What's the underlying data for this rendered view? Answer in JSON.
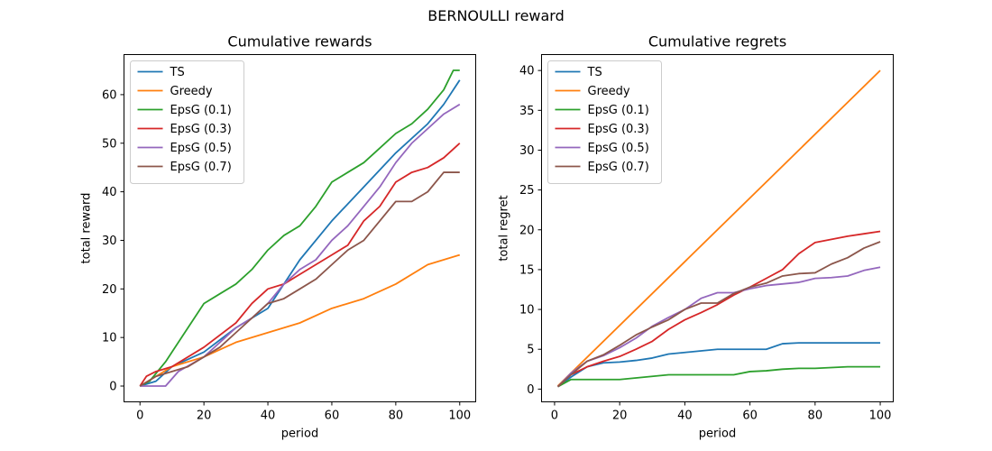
{
  "figure": {
    "suptitle": "BERNOULLI reward"
  },
  "chart_data": [
    {
      "type": "line",
      "title": "Cumulative rewards",
      "xlabel": "period",
      "ylabel": "total reward",
      "xlim": [
        -5,
        105
      ],
      "ylim": [
        -3.25,
        68.25
      ],
      "xticks": [
        0,
        20,
        40,
        60,
        80,
        100
      ],
      "yticks": [
        0,
        10,
        20,
        30,
        40,
        50,
        60
      ],
      "legend": "upper-left",
      "series": [
        {
          "name": "TS",
          "color": "#1f77b4",
          "x": [
            0,
            5,
            10,
            20,
            30,
            40,
            50,
            60,
            70,
            80,
            90,
            95,
            100
          ],
          "y": [
            0,
            1,
            4,
            7,
            12,
            16,
            26,
            34,
            41,
            48,
            54,
            58,
            63
          ]
        },
        {
          "name": "Greedy",
          "color": "#ff7f0e",
          "x": [
            0,
            5,
            10,
            20,
            30,
            40,
            50,
            60,
            70,
            80,
            90,
            100
          ],
          "y": [
            0,
            2,
            4,
            6,
            9,
            11,
            13,
            16,
            18,
            21,
            25,
            27
          ]
        },
        {
          "name": "EpsG (0.1)",
          "color": "#2ca02c",
          "x": [
            0,
            3,
            8,
            15,
            20,
            25,
            30,
            35,
            40,
            45,
            50,
            55,
            60,
            65,
            70,
            75,
            80,
            85,
            90,
            95,
            98,
            100
          ],
          "y": [
            0,
            1,
            5,
            12,
            17,
            19,
            21,
            24,
            28,
            31,
            33,
            37,
            42,
            44,
            46,
            49,
            52,
            54,
            57,
            61,
            65,
            65
          ]
        },
        {
          "name": "EpsG (0.3)",
          "color": "#d62728",
          "x": [
            0,
            2,
            5,
            10,
            20,
            30,
            35,
            40,
            45,
            50,
            55,
            60,
            65,
            70,
            75,
            80,
            85,
            90,
            95,
            100
          ],
          "y": [
            0,
            2,
            3,
            4,
            8,
            13,
            17,
            20,
            21,
            23,
            25,
            27,
            29,
            34,
            37,
            42,
            44,
            45,
            47,
            50
          ]
        },
        {
          "name": "EpsG (0.5)",
          "color": "#9467bd",
          "x": [
            0,
            8,
            12,
            20,
            25,
            30,
            35,
            40,
            45,
            50,
            55,
            60,
            65,
            70,
            75,
            80,
            85,
            90,
            95,
            100
          ],
          "y": [
            0,
            0,
            3,
            6,
            9,
            12,
            14,
            17,
            21,
            24,
            26,
            30,
            33,
            37,
            41,
            46,
            50,
            53,
            56,
            58
          ]
        },
        {
          "name": "EpsG (0.7)",
          "color": "#8c564b",
          "x": [
            0,
            5,
            10,
            15,
            20,
            25,
            30,
            35,
            40,
            45,
            50,
            55,
            60,
            65,
            70,
            75,
            80,
            85,
            90,
            95,
            100
          ],
          "y": [
            0,
            2,
            3,
            4,
            6,
            8,
            11,
            14,
            17,
            18,
            20,
            22,
            25,
            28,
            30,
            34,
            38,
            38,
            40,
            44,
            44
          ]
        }
      ]
    },
    {
      "type": "line",
      "title": "Cumulative regrets",
      "xlabel": "period",
      "ylabel": "total regret",
      "xlim": [
        -4,
        104
      ],
      "ylim": [
        -1.6,
        42.0
      ],
      "xticks": [
        0,
        20,
        40,
        60,
        80,
        100
      ],
      "yticks": [
        0,
        5,
        10,
        15,
        20,
        25,
        30,
        35,
        40
      ],
      "legend": "upper-left",
      "series": [
        {
          "name": "TS",
          "color": "#1f77b4",
          "x": [
            1,
            5,
            10,
            15,
            20,
            25,
            30,
            35,
            40,
            45,
            50,
            55,
            60,
            65,
            70,
            75,
            80,
            85,
            90,
            95,
            100
          ],
          "y": [
            0.3,
            1.5,
            2.8,
            3.3,
            3.4,
            3.6,
            3.9,
            4.4,
            4.6,
            4.8,
            5.0,
            5.0,
            5.0,
            5.0,
            5.7,
            5.8,
            5.8,
            5.8,
            5.8,
            5.8,
            5.8
          ]
        },
        {
          "name": "Greedy",
          "color": "#ff7f0e",
          "x": [
            1,
            100
          ],
          "y": [
            0.4,
            40
          ]
        },
        {
          "name": "EpsG (0.1)",
          "color": "#2ca02c",
          "x": [
            1,
            5,
            10,
            15,
            20,
            25,
            30,
            35,
            40,
            45,
            50,
            55,
            60,
            65,
            70,
            75,
            80,
            85,
            90,
            95,
            100
          ],
          "y": [
            0.3,
            1.2,
            1.2,
            1.2,
            1.2,
            1.4,
            1.6,
            1.8,
            1.8,
            1.8,
            1.8,
            1.8,
            2.2,
            2.3,
            2.5,
            2.6,
            2.6,
            2.7,
            2.8,
            2.8,
            2.8
          ]
        },
        {
          "name": "EpsG (0.3)",
          "color": "#d62728",
          "x": [
            1,
            5,
            10,
            15,
            20,
            25,
            30,
            35,
            40,
            45,
            50,
            55,
            60,
            65,
            70,
            75,
            80,
            85,
            90,
            95,
            100
          ],
          "y": [
            0.3,
            1.8,
            2.8,
            3.5,
            4.1,
            5.0,
            6.0,
            7.5,
            8.7,
            9.6,
            10.6,
            11.8,
            12.8,
            13.9,
            15.0,
            17.0,
            18.4,
            18.8,
            19.2,
            19.5,
            19.8
          ]
        },
        {
          "name": "EpsG (0.5)",
          "color": "#9467bd",
          "x": [
            1,
            5,
            10,
            15,
            20,
            25,
            30,
            35,
            40,
            45,
            50,
            55,
            60,
            65,
            70,
            75,
            80,
            85,
            90,
            95,
            100
          ],
          "y": [
            0.3,
            2.0,
            3.5,
            4.2,
            5.2,
            6.4,
            7.9,
            9.0,
            10.0,
            11.4,
            12.1,
            12.1,
            12.6,
            13.0,
            13.2,
            13.4,
            13.9,
            14.0,
            14.2,
            14.9,
            15.3
          ]
        },
        {
          "name": "EpsG (0.7)",
          "color": "#8c564b",
          "x": [
            1,
            5,
            10,
            15,
            20,
            25,
            30,
            35,
            40,
            45,
            50,
            55,
            60,
            65,
            70,
            75,
            80,
            85,
            90,
            95,
            100
          ],
          "y": [
            0.3,
            1.8,
            3.5,
            4.3,
            5.5,
            6.8,
            7.8,
            8.7,
            10.0,
            10.8,
            10.8,
            12.0,
            12.8,
            13.3,
            14.2,
            14.5,
            14.6,
            15.7,
            16.5,
            17.7,
            18.5
          ]
        }
      ]
    }
  ]
}
